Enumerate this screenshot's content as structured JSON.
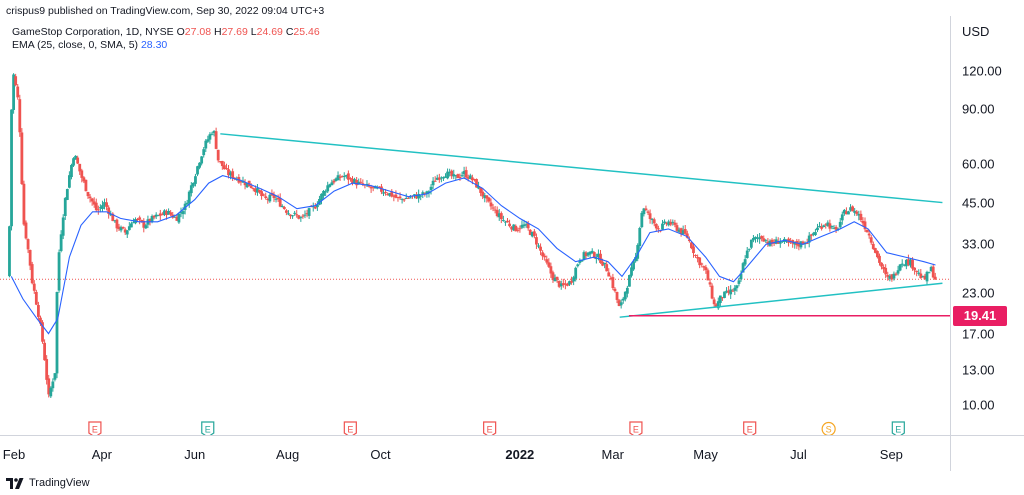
{
  "credit": "crispus9 published on TradingView.com, Sep 30, 2022 09:04 UTC+3",
  "legend": {
    "symbol": "GameStop Corporation, 1D, NYSE",
    "ohlc": {
      "o_label": "O",
      "o": "27.08",
      "h_label": "H",
      "h": "27.69",
      "l_label": "L",
      "l": "24.69",
      "c_label": "C",
      "c": "25.46"
    },
    "ema_label": "EMA (25, close, 0, SMA, 5)",
    "ema_value": "28.30"
  },
  "footer": {
    "brand": "TradingView"
  },
  "colors": {
    "up": "#26a69a",
    "down": "#ef5350",
    "ema": "#2962ff",
    "trendline": "#22c1c3",
    "support": "#e91e63",
    "last_price_line": "#ef5350",
    "earnings_badge": "#ef5350",
    "earnings_badge_up": "#26a69a",
    "split_badge": "#f5a623"
  },
  "chart_data": {
    "type": "candlestick",
    "currency": "USD",
    "scale": "log",
    "ylim": [
      8.0,
      180.0
    ],
    "price_ticks": [
      "120.00",
      "90.00",
      "60.00",
      "45.00",
      "33.00",
      "23.00",
      "17.00",
      "13.00",
      "10.00"
    ],
    "x_labels": [
      {
        "t": 0.0,
        "label": "Feb",
        "year": false
      },
      {
        "t": 2.0,
        "label": "Apr",
        "year": false
      },
      {
        "t": 4.0,
        "label": "Jun",
        "year": false
      },
      {
        "t": 6.0,
        "label": "Aug",
        "year": false
      },
      {
        "t": 8.0,
        "label": "Oct",
        "year": false
      },
      {
        "t": 11.0,
        "label": "2022",
        "year": true
      },
      {
        "t": 13.0,
        "label": "Mar",
        "year": false
      },
      {
        "t": 15.0,
        "label": "May",
        "year": false
      },
      {
        "t": 17.0,
        "label": "Jul",
        "year": false
      },
      {
        "t": 19.0,
        "label": "Sep",
        "year": false
      }
    ],
    "t_range": [
      0.0,
      20.22
    ],
    "price_path": [
      [
        0.0,
        26
      ],
      [
        0.08,
        120
      ],
      [
        0.2,
        95
      ],
      [
        0.3,
        40
      ],
      [
        0.5,
        25
      ],
      [
        0.7,
        17
      ],
      [
        0.85,
        10.5
      ],
      [
        1.0,
        13
      ],
      [
        1.05,
        28
      ],
      [
        1.2,
        45
      ],
      [
        1.4,
        65
      ],
      [
        1.55,
        55
      ],
      [
        1.7,
        48
      ],
      [
        1.9,
        42
      ],
      [
        2.05,
        45
      ],
      [
        2.3,
        38
      ],
      [
        2.5,
        36
      ],
      [
        2.7,
        40
      ],
      [
        2.9,
        38
      ],
      [
        3.1,
        40
      ],
      [
        3.4,
        42
      ],
      [
        3.6,
        40
      ],
      [
        3.8,
        44
      ],
      [
        4.0,
        55
      ],
      [
        4.2,
        68
      ],
      [
        4.4,
        78
      ],
      [
        4.5,
        62
      ],
      [
        4.7,
        56
      ],
      [
        4.9,
        54
      ],
      [
        5.1,
        52
      ],
      [
        5.3,
        50
      ],
      [
        5.5,
        46
      ],
      [
        5.7,
        47
      ],
      [
        6.0,
        42
      ],
      [
        6.3,
        40
      ],
      [
        6.6,
        44
      ],
      [
        6.9,
        52
      ],
      [
        7.2,
        55
      ],
      [
        7.5,
        52
      ],
      [
        7.8,
        50
      ],
      [
        8.1,
        49
      ],
      [
        8.4,
        46
      ],
      [
        8.7,
        47
      ],
      [
        9.0,
        48
      ],
      [
        9.2,
        54
      ],
      [
        9.4,
        56
      ],
      [
        9.6,
        54
      ],
      [
        9.8,
        56
      ],
      [
        10.0,
        53
      ],
      [
        10.3,
        45
      ],
      [
        10.6,
        40
      ],
      [
        10.9,
        37
      ],
      [
        11.1,
        38
      ],
      [
        11.3,
        35
      ],
      [
        11.5,
        30
      ],
      [
        11.7,
        26
      ],
      [
        11.9,
        24
      ],
      [
        12.1,
        25
      ],
      [
        12.3,
        30
      ],
      [
        12.5,
        31
      ],
      [
        12.7,
        30
      ],
      [
        12.9,
        27
      ],
      [
        13.05,
        23
      ],
      [
        13.15,
        20.3
      ],
      [
        13.3,
        24
      ],
      [
        13.5,
        30
      ],
      [
        13.65,
        44
      ],
      [
        13.8,
        40
      ],
      [
        14.0,
        37
      ],
      [
        14.2,
        39
      ],
      [
        14.4,
        37
      ],
      [
        14.6,
        35
      ],
      [
        14.8,
        30
      ],
      [
        15.0,
        27
      ],
      [
        15.2,
        20.5
      ],
      [
        15.35,
        22.5
      ],
      [
        15.5,
        23
      ],
      [
        15.7,
        24
      ],
      [
        15.85,
        30
      ],
      [
        16.0,
        34
      ],
      [
        16.2,
        35
      ],
      [
        16.4,
        33
      ],
      [
        16.6,
        34
      ],
      [
        16.8,
        33
      ],
      [
        17.0,
        33
      ],
      [
        17.2,
        34
      ],
      [
        17.4,
        37
      ],
      [
        17.6,
        39
      ],
      [
        17.8,
        36
      ],
      [
        18.0,
        42
      ],
      [
        18.15,
        43
      ],
      [
        18.3,
        41
      ],
      [
        18.5,
        36
      ],
      [
        18.7,
        30
      ],
      [
        18.9,
        25.5
      ],
      [
        19.05,
        26
      ],
      [
        19.2,
        29
      ],
      [
        19.4,
        29
      ],
      [
        19.55,
        27
      ],
      [
        19.7,
        25.2
      ],
      [
        19.85,
        27.5
      ],
      [
        19.95,
        25.46
      ]
    ],
    "ema_path": [
      [
        0.05,
        26
      ],
      [
        0.3,
        22
      ],
      [
        0.6,
        19
      ],
      [
        0.85,
        17
      ],
      [
        1.05,
        19
      ],
      [
        1.3,
        30
      ],
      [
        1.55,
        38
      ],
      [
        1.8,
        42
      ],
      [
        2.1,
        42
      ],
      [
        2.4,
        40
      ],
      [
        2.8,
        39
      ],
      [
        3.2,
        39
      ],
      [
        3.6,
        41
      ],
      [
        4.0,
        46
      ],
      [
        4.3,
        52
      ],
      [
        4.6,
        55
      ],
      [
        5.0,
        53
      ],
      [
        5.4,
        50
      ],
      [
        5.8,
        47
      ],
      [
        6.2,
        43
      ],
      [
        6.6,
        44
      ],
      [
        7.0,
        49
      ],
      [
        7.4,
        52
      ],
      [
        7.8,
        51
      ],
      [
        8.2,
        49
      ],
      [
        8.6,
        47
      ],
      [
        9.0,
        48
      ],
      [
        9.4,
        52
      ],
      [
        9.8,
        54
      ],
      [
        10.2,
        50
      ],
      [
        10.6,
        44
      ],
      [
        11.0,
        40
      ],
      [
        11.4,
        37
      ],
      [
        11.8,
        32
      ],
      [
        12.2,
        29
      ],
      [
        12.6,
        30
      ],
      [
        12.9,
        29
      ],
      [
        13.2,
        26
      ],
      [
        13.5,
        30
      ],
      [
        13.8,
        36
      ],
      [
        14.2,
        37
      ],
      [
        14.6,
        35
      ],
      [
        15.0,
        30
      ],
      [
        15.3,
        26
      ],
      [
        15.6,
        25
      ],
      [
        15.9,
        28
      ],
      [
        16.3,
        33
      ],
      [
        16.7,
        34
      ],
      [
        17.1,
        33
      ],
      [
        17.5,
        35
      ],
      [
        17.9,
        37
      ],
      [
        18.2,
        39
      ],
      [
        18.5,
        37
      ],
      [
        18.9,
        31
      ],
      [
        19.3,
        30
      ],
      [
        19.7,
        29
      ],
      [
        19.95,
        28.3
      ]
    ],
    "trendlines": [
      {
        "name": "upper",
        "from": [
          4.55,
          75
        ],
        "to": [
          20.1,
          45
        ]
      },
      {
        "name": "lower",
        "from": [
          13.15,
          19.2
        ],
        "to": [
          20.1,
          24.7
        ]
      }
    ],
    "support": {
      "value": 19.41,
      "from_t": 13.35,
      "label": "19.41"
    },
    "last_price": 25.46,
    "events": [
      {
        "t": 1.85,
        "type": "E",
        "style": "down"
      },
      {
        "t": 4.28,
        "type": "E",
        "style": "up"
      },
      {
        "t": 7.35,
        "type": "E",
        "style": "down"
      },
      {
        "t": 10.35,
        "type": "E",
        "style": "down"
      },
      {
        "t": 13.5,
        "type": "E",
        "style": "down"
      },
      {
        "t": 15.95,
        "type": "E",
        "style": "down"
      },
      {
        "t": 17.65,
        "type": "S",
        "style": "split"
      },
      {
        "t": 19.15,
        "type": "E",
        "style": "up"
      }
    ]
  }
}
